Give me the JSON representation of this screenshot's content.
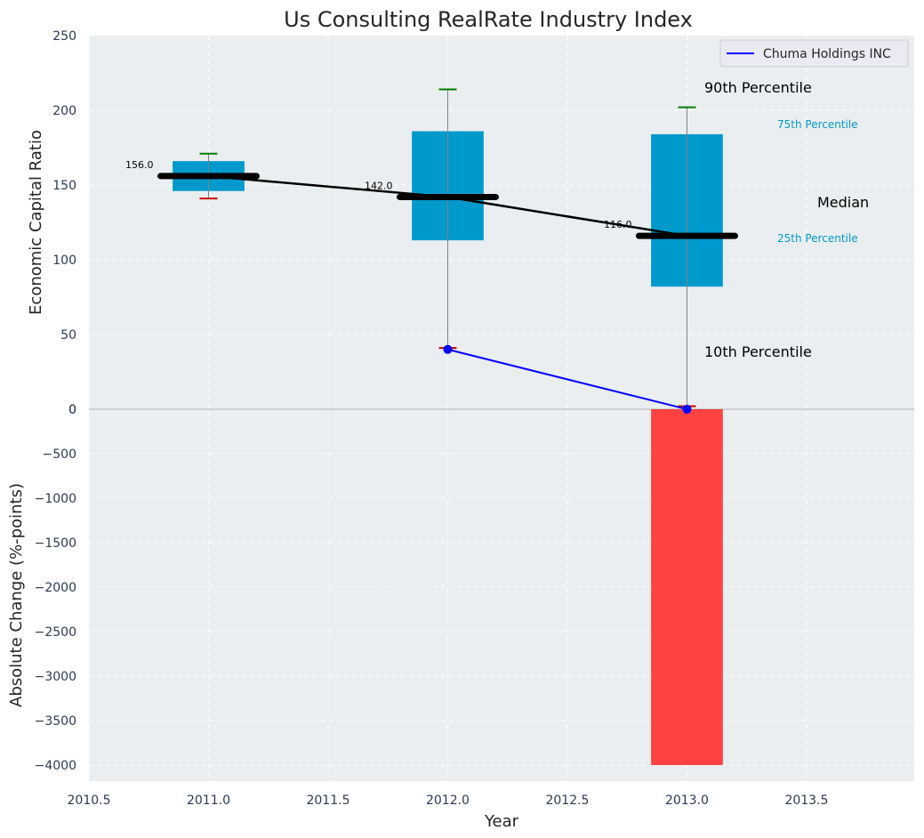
{
  "chart_data": {
    "title": "Us Consulting RealRate Industry Index",
    "xlabel": "Year",
    "x_ticks": [
      "2010.5",
      "2011.0",
      "2011.5",
      "2012.0",
      "2012.5",
      "2013.0",
      "2013.5"
    ],
    "xlim": [
      2010.5,
      2013.95
    ],
    "grid": true,
    "legend": {
      "position": "top-right",
      "label": "Chuma Holdings INC",
      "color": "#0000ff"
    },
    "panels": [
      {
        "type": "box",
        "ylabel": "Economic Capital Ratio",
        "ylim": [
          0,
          250
        ],
        "y_ticks": [
          "0",
          "50",
          "100",
          "150",
          "200",
          "250"
        ],
        "box_color": "#0099cc",
        "years": [
          2011,
          2012,
          2013
        ],
        "p10": [
          141,
          41,
          2
        ],
        "p25": [
          146,
          113,
          82
        ],
        "median": [
          156,
          142,
          116
        ],
        "p75": [
          166,
          186,
          184
        ],
        "p90": [
          171,
          214,
          202
        ],
        "median_labels": [
          "156.0",
          "142.0",
          "116.0"
        ],
        "company_series": {
          "name": "Chuma Holdings INC",
          "x": [
            2012,
            2013
          ],
          "y": [
            40,
            0
          ]
        },
        "annotations": {
          "p90": "90th Percentile",
          "p75": "75th Percentile",
          "median": "Median",
          "p25": "25th Percentile",
          "p10": "10th Percentile"
        }
      },
      {
        "type": "bar",
        "ylabel": "Absolute Change (%-points)",
        "ylim": [
          -4180,
          0
        ],
        "y_ticks": [
          "0",
          "−500",
          "−1000",
          "−1500",
          "−2000",
          "−2500",
          "−3000",
          "−3500",
          "−4000"
        ],
        "bar_color": "#ff3333",
        "x": [
          2013
        ],
        "values": [
          -4000
        ]
      }
    ]
  }
}
